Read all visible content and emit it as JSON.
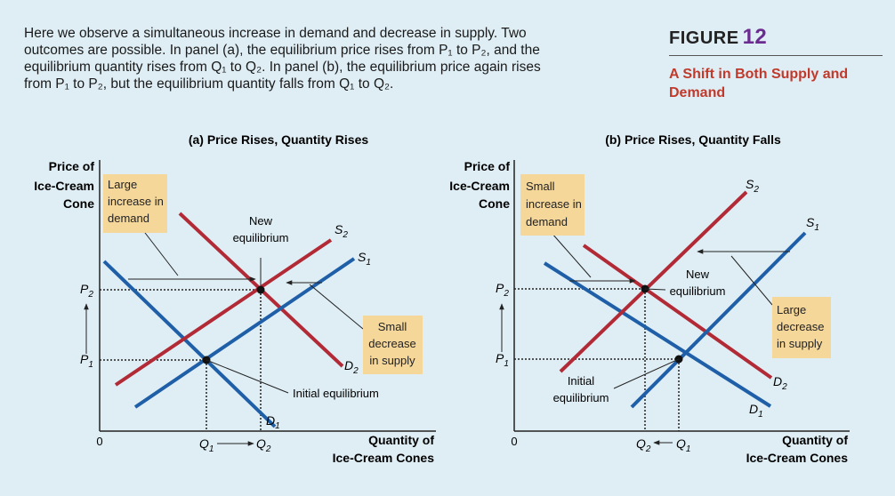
{
  "caption": {
    "line1": "Here we observe a simultaneous increase in demand and decrease in supply. Two",
    "line2": "outcomes are possible. In panel (a), the equilibrium price rises from P₁ to P₂, and the",
    "line3": "equilibrium quantity rises from Q₁ to Q₂. In panel (b), the equilibrium price again rises",
    "line4": "from P₁ to P₂, but the equilibrium quantity falls from Q₁ to Q₂."
  },
  "figure": {
    "label": "FIGURE",
    "number": "12",
    "title_line1": "A Shift in Both Supply and",
    "title_line2": "Demand"
  },
  "colors": {
    "demand": "#1f5fa8",
    "supply": "#b22a35",
    "callout": "#f6d79a",
    "title": "#c0392b",
    "accent": "#6b2c8f"
  },
  "panel_a": {
    "title": "(a) Price Rises, Quantity Rises",
    "ylabel_1": "Price of",
    "ylabel_2": "Ice-Cream",
    "ylabel_3": "Cone",
    "xlabel_1": "Quantity of",
    "xlabel_2": "Ice-Cream Cones",
    "origin": "0",
    "p1": "P",
    "p1_sub": "1",
    "p2": "P",
    "p2_sub": "2",
    "q1": "Q",
    "q1_sub": "1",
    "q2": "Q",
    "q2_sub": "2",
    "s1": "S",
    "s1_sub": "1",
    "s2": "S",
    "s2_sub": "2",
    "d1": "D",
    "d1_sub": "1",
    "d2": "D",
    "d2_sub": "2",
    "demand_box": [
      "Large",
      "increase in",
      "demand"
    ],
    "supply_box": [
      "Small",
      "decrease",
      "in supply"
    ],
    "new_eq": [
      "New",
      "equilibrium"
    ],
    "initial_eq": "Initial equilibrium"
  },
  "panel_b": {
    "title": "(b) Price Rises, Quantity Falls",
    "ylabel_1": "Price of",
    "ylabel_2": "Ice-Cream",
    "ylabel_3": "Cone",
    "xlabel_1": "Quantity of",
    "xlabel_2": "Ice-Cream Cones",
    "origin": "0",
    "p1": "P",
    "p1_sub": "1",
    "p2": "P",
    "p2_sub": "2",
    "q1": "Q",
    "q1_sub": "1",
    "q2": "Q",
    "q2_sub": "2",
    "s1": "S",
    "s1_sub": "1",
    "s2": "S",
    "s2_sub": "2",
    "d1": "D",
    "d1_sub": "1",
    "d2": "D",
    "d2_sub": "2",
    "demand_box": [
      "Small",
      "increase in",
      "demand"
    ],
    "supply_box": [
      "Large",
      "decrease",
      "in supply"
    ],
    "new_eq": [
      "New",
      "equilibrium"
    ],
    "initial_eq": [
      "Initial",
      "equilibrium"
    ]
  }
}
